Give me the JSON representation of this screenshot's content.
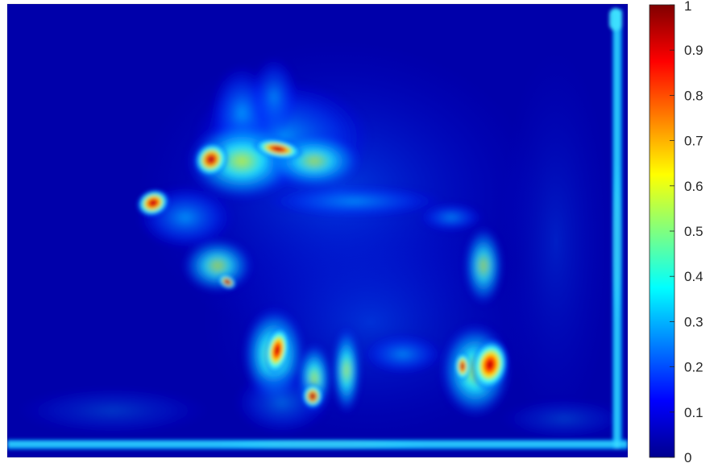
{
  "chart_data": {
    "type": "heatmap",
    "title": "",
    "subject": "saliency heat map of a bugling elk (stag) standing in a frame, bright edges along the bottom and right border",
    "colormap": "jet",
    "colorbar": {
      "min": 0,
      "max": 1,
      "ticks": [
        0,
        0.1,
        0.2,
        0.3,
        0.4,
        0.5,
        0.6,
        0.7,
        0.8,
        0.9,
        1
      ],
      "tick_labels": [
        "0",
        "0.1",
        "0.2",
        "0.3",
        "0.4",
        "0.5",
        "0.6",
        "0.7",
        "0.8",
        "0.9",
        "1"
      ],
      "position": "right"
    },
    "hotspots": [
      {
        "region": "elk muzzle",
        "value": 0.85
      },
      {
        "region": "antler base",
        "value": 0.8
      },
      {
        "region": "antler tips",
        "value": 0.8
      },
      {
        "region": "front leg",
        "value": 0.9
      },
      {
        "region": "hind leg",
        "value": 1.0
      },
      {
        "region": "left edge of hind leg",
        "value": 0.75
      },
      {
        "region": "lower front leg",
        "value": 0.7
      },
      {
        "region": "throat / chest",
        "value": 0.55
      },
      {
        "region": "bottom border",
        "value": 0.3
      },
      {
        "region": "right border",
        "value": 0.3
      }
    ],
    "background_value": 0.05,
    "xlabel": "",
    "ylabel": "",
    "grid": false
  },
  "colors": {
    "jet": [
      "#00008f",
      "#0000ff",
      "#00ffff",
      "#ffff00",
      "#ff0000",
      "#800000"
    ],
    "axis": "#262626",
    "background": "#ffffff"
  }
}
